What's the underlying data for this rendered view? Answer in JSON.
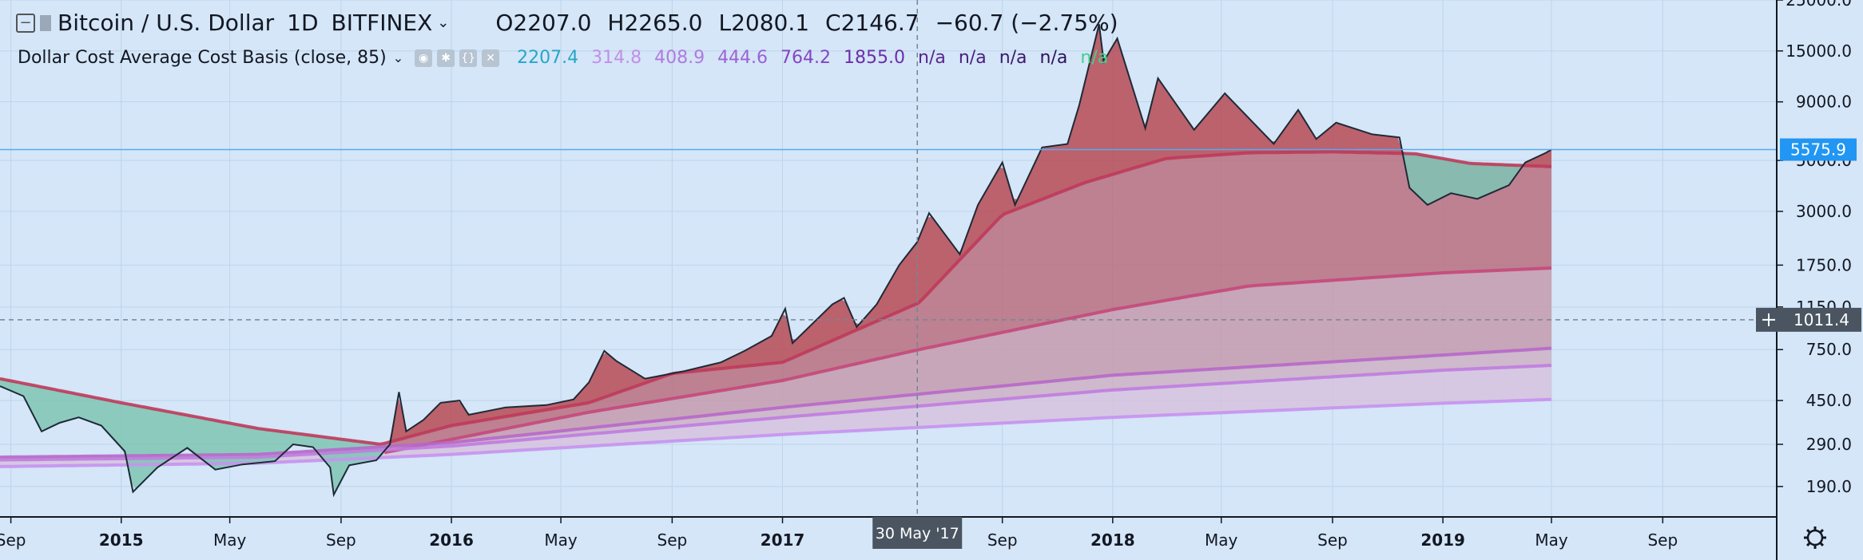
{
  "header": {
    "symbol": "Bitcoin / U.S. Dollar",
    "interval": "1D",
    "exchange": "BITFINEX",
    "open_label": "O",
    "open": "2207.0",
    "high_label": "H",
    "high": "2265.0",
    "low_label": "L",
    "low": "2080.1",
    "close_label": "C",
    "close": "2146.7",
    "change": "−60.7 (−2.75%)"
  },
  "indicator": {
    "name": "Dollar Cost Average Cost Basis (close, 85)",
    "values": [
      {
        "text": "2207.4",
        "color": "#26a6c8"
      },
      {
        "text": "314.8",
        "color": "#c38ee8"
      },
      {
        "text": "408.9",
        "color": "#b07ae0"
      },
      {
        "text": "444.6",
        "color": "#9b63d6"
      },
      {
        "text": "764.2",
        "color": "#8445c4"
      },
      {
        "text": "1855.0",
        "color": "#6b2fa8"
      },
      {
        "text": "n/a",
        "color": "#5a2590"
      },
      {
        "text": "n/a",
        "color": "#4b1f80"
      },
      {
        "text": "n/a",
        "color": "#3c196e"
      },
      {
        "text": "n/a",
        "color": "#2e135c"
      },
      {
        "text": "n/a",
        "color": "#3fd28a"
      }
    ]
  },
  "chart_data": {
    "type": "area",
    "y_scale": "log",
    "ylim": [
      140,
      25000
    ],
    "xlim": [
      "2014-08-20",
      "2020-01-05"
    ],
    "y_ticks": [
      "25000.0",
      "15000.0",
      "9000.0",
      "5000.0",
      "3000.0",
      "1750.0",
      "1150.0",
      "750.0",
      "450.0",
      "290.0",
      "190.0"
    ],
    "x_ticks": [
      {
        "date": "2014-09-01",
        "label": "Sep"
      },
      {
        "date": "2015-01-01",
        "label": "2015"
      },
      {
        "date": "2015-05-01",
        "label": "May"
      },
      {
        "date": "2015-09-01",
        "label": "Sep"
      },
      {
        "date": "2016-01-01",
        "label": "2016"
      },
      {
        "date": "2016-05-01",
        "label": "May"
      },
      {
        "date": "2016-09-01",
        "label": "Sep"
      },
      {
        "date": "2017-01-01",
        "label": "2017"
      },
      {
        "date": "2017-09-01",
        "label": "Sep"
      },
      {
        "date": "2018-01-01",
        "label": "2018"
      },
      {
        "date": "2018-05-01",
        "label": "May"
      },
      {
        "date": "2018-09-01",
        "label": "Sep"
      },
      {
        "date": "2019-01-01",
        "label": "2019"
      },
      {
        "date": "2019-05-01",
        "label": "May"
      },
      {
        "date": "2019-09-01",
        "label": "Sep"
      }
    ],
    "price_series": {
      "name": "BTCUSD",
      "points": [
        [
          "2014-08-20",
          520
        ],
        [
          "2014-09-15",
          470
        ],
        [
          "2014-10-05",
          330
        ],
        [
          "2014-10-25",
          360
        ],
        [
          "2014-11-15",
          380
        ],
        [
          "2014-12-10",
          350
        ],
        [
          "2015-01-05",
          270
        ],
        [
          "2015-01-14",
          180
        ],
        [
          "2015-02-10",
          230
        ],
        [
          "2015-03-15",
          280
        ],
        [
          "2015-04-15",
          225
        ],
        [
          "2015-05-15",
          237
        ],
        [
          "2015-06-20",
          245
        ],
        [
          "2015-07-10",
          290
        ],
        [
          "2015-08-01",
          282
        ],
        [
          "2015-08-20",
          230
        ],
        [
          "2015-08-24",
          175
        ],
        [
          "2015-09-10",
          235
        ],
        [
          "2015-10-10",
          247
        ],
        [
          "2015-10-25",
          290
        ],
        [
          "2015-11-04",
          490
        ],
        [
          "2015-11-12",
          330
        ],
        [
          "2015-12-01",
          370
        ],
        [
          "2015-12-20",
          440
        ],
        [
          "2016-01-10",
          450
        ],
        [
          "2016-01-20",
          390
        ],
        [
          "2016-03-01",
          420
        ],
        [
          "2016-04-15",
          430
        ],
        [
          "2016-05-15",
          455
        ],
        [
          "2016-06-01",
          540
        ],
        [
          "2016-06-18",
          740
        ],
        [
          "2016-07-01",
          670
        ],
        [
          "2016-08-02",
          560
        ],
        [
          "2016-09-15",
          605
        ],
        [
          "2016-10-25",
          660
        ],
        [
          "2016-11-20",
          740
        ],
        [
          "2016-12-20",
          860
        ],
        [
          "2017-01-04",
          1130
        ],
        [
          "2017-01-12",
          800
        ],
        [
          "2017-02-25",
          1180
        ],
        [
          "2017-03-10",
          1260
        ],
        [
          "2017-03-24",
          940
        ],
        [
          "2017-04-15",
          1180
        ],
        [
          "2017-05-10",
          1750
        ],
        [
          "2017-05-30",
          2207
        ],
        [
          "2017-06-12",
          2950
        ],
        [
          "2017-07-16",
          1950
        ],
        [
          "2017-08-05",
          3200
        ],
        [
          "2017-09-01",
          4900
        ],
        [
          "2017-09-15",
          3200
        ],
        [
          "2017-10-15",
          5700
        ],
        [
          "2017-11-12",
          5900
        ],
        [
          "2017-11-25",
          8700
        ],
        [
          "2017-12-17",
          19600
        ],
        [
          "2017-12-22",
          13500
        ],
        [
          "2018-01-06",
          17000
        ],
        [
          "2018-02-06",
          6900
        ],
        [
          "2018-02-20",
          11400
        ],
        [
          "2018-04-01",
          6800
        ],
        [
          "2018-05-05",
          9800
        ],
        [
          "2018-06-28",
          5900
        ],
        [
          "2018-07-25",
          8300
        ],
        [
          "2018-08-14",
          6200
        ],
        [
          "2018-09-05",
          7300
        ],
        [
          "2018-10-15",
          6500
        ],
        [
          "2018-11-14",
          6300
        ],
        [
          "2018-11-25",
          3800
        ],
        [
          "2018-12-15",
          3200
        ],
        [
          "2019-01-10",
          3600
        ],
        [
          "2019-02-08",
          3400
        ],
        [
          "2019-03-15",
          3900
        ],
        [
          "2019-04-02",
          4900
        ],
        [
          "2019-04-25",
          5400
        ],
        [
          "2019-05-01",
          5575.9
        ]
      ]
    },
    "cost_basis_series": [
      {
        "points": [
          [
            "2014-08-20",
            560
          ],
          [
            "2015-01-01",
            440
          ],
          [
            "2015-06-01",
            340
          ],
          [
            "2015-10-15",
            290
          ],
          [
            "2016-01-01",
            350
          ],
          [
            "2016-06-01",
            440
          ],
          [
            "2016-09-01",
            590
          ],
          [
            "2017-01-01",
            660
          ],
          [
            "2017-06-01",
            1200
          ],
          [
            "2017-09-01",
            2900
          ],
          [
            "2017-12-01",
            4000
          ],
          [
            "2018-03-01",
            5100
          ],
          [
            "2018-06-01",
            5400
          ],
          [
            "2018-09-01",
            5450
          ],
          [
            "2018-12-01",
            5350
          ],
          [
            "2019-02-01",
            4850
          ],
          [
            "2019-05-01",
            4700
          ]
        ]
      },
      {
        "points": [
          [
            "2015-10-15",
            265
          ],
          [
            "2016-06-01",
            400
          ],
          [
            "2017-01-01",
            550
          ],
          [
            "2017-06-01",
            750
          ],
          [
            "2018-01-01",
            1120
          ],
          [
            "2018-06-01",
            1420
          ],
          [
            "2019-01-01",
            1620
          ],
          [
            "2019-05-01",
            1700
          ]
        ]
      },
      {
        "points": [
          [
            "2014-08-20",
            255
          ],
          [
            "2015-06-01",
            262
          ],
          [
            "2016-01-01",
            295
          ],
          [
            "2017-01-01",
            420
          ],
          [
            "2018-01-01",
            580
          ],
          [
            "2019-01-01",
            710
          ],
          [
            "2019-05-01",
            760
          ]
        ]
      },
      {
        "points": [
          [
            "2014-08-20",
            248
          ],
          [
            "2015-06-01",
            255
          ],
          [
            "2016-01-01",
            285
          ],
          [
            "2017-01-01",
            380
          ],
          [
            "2018-01-01",
            500
          ],
          [
            "2019-01-01",
            610
          ],
          [
            "2019-05-01",
            640
          ]
        ]
      },
      {
        "points": [
          [
            "2014-08-20",
            232
          ],
          [
            "2015-06-01",
            240
          ],
          [
            "2016-01-01",
            262
          ],
          [
            "2017-01-01",
            320
          ],
          [
            "2018-01-01",
            380
          ],
          [
            "2019-01-01",
            438
          ],
          [
            "2019-05-01",
            455
          ]
        ]
      }
    ],
    "price_label": "5575.9",
    "crosshair": {
      "date": "2017-05-30",
      "date_label": "30 May '17",
      "price": 1011.4,
      "price_label": "1011.4"
    },
    "colors": {
      "background": "#d4e6f8",
      "price_line": "#1e2a36",
      "above_fill": "#b64a55",
      "below_fill": "#7fc4b4",
      "cost_line": "#bf3a5a",
      "axis_text": "#131722",
      "price_tag": "#2196f3"
    }
  }
}
